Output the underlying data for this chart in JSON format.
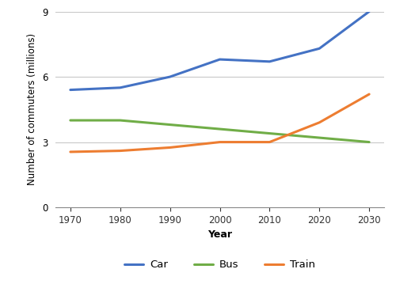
{
  "years": [
    1970,
    1980,
    1990,
    2000,
    2010,
    2020,
    2030
  ],
  "car": [
    5.4,
    5.5,
    6.0,
    6.8,
    6.7,
    7.3,
    9.0
  ],
  "bus": [
    4.0,
    4.0,
    3.8,
    3.6,
    3.4,
    3.2,
    3.0
  ],
  "train": [
    2.55,
    2.6,
    2.75,
    3.0,
    3.0,
    3.9,
    5.2
  ],
  "car_color": "#4472c4",
  "bus_color": "#70ad47",
  "train_color": "#ed7d31",
  "xlabel": "Year",
  "ylabel": "Number of commuters (millions)",
  "ylim": [
    0,
    9
  ],
  "yticks": [
    0,
    3,
    6,
    9
  ],
  "xticks": [
    1970,
    1980,
    1990,
    2000,
    2010,
    2020,
    2030
  ],
  "linewidth": 2.2,
  "legend_labels": [
    "Car",
    "Bus",
    "Train"
  ],
  "background_color": "#ffffff",
  "grid_color": "#c8c8c8"
}
